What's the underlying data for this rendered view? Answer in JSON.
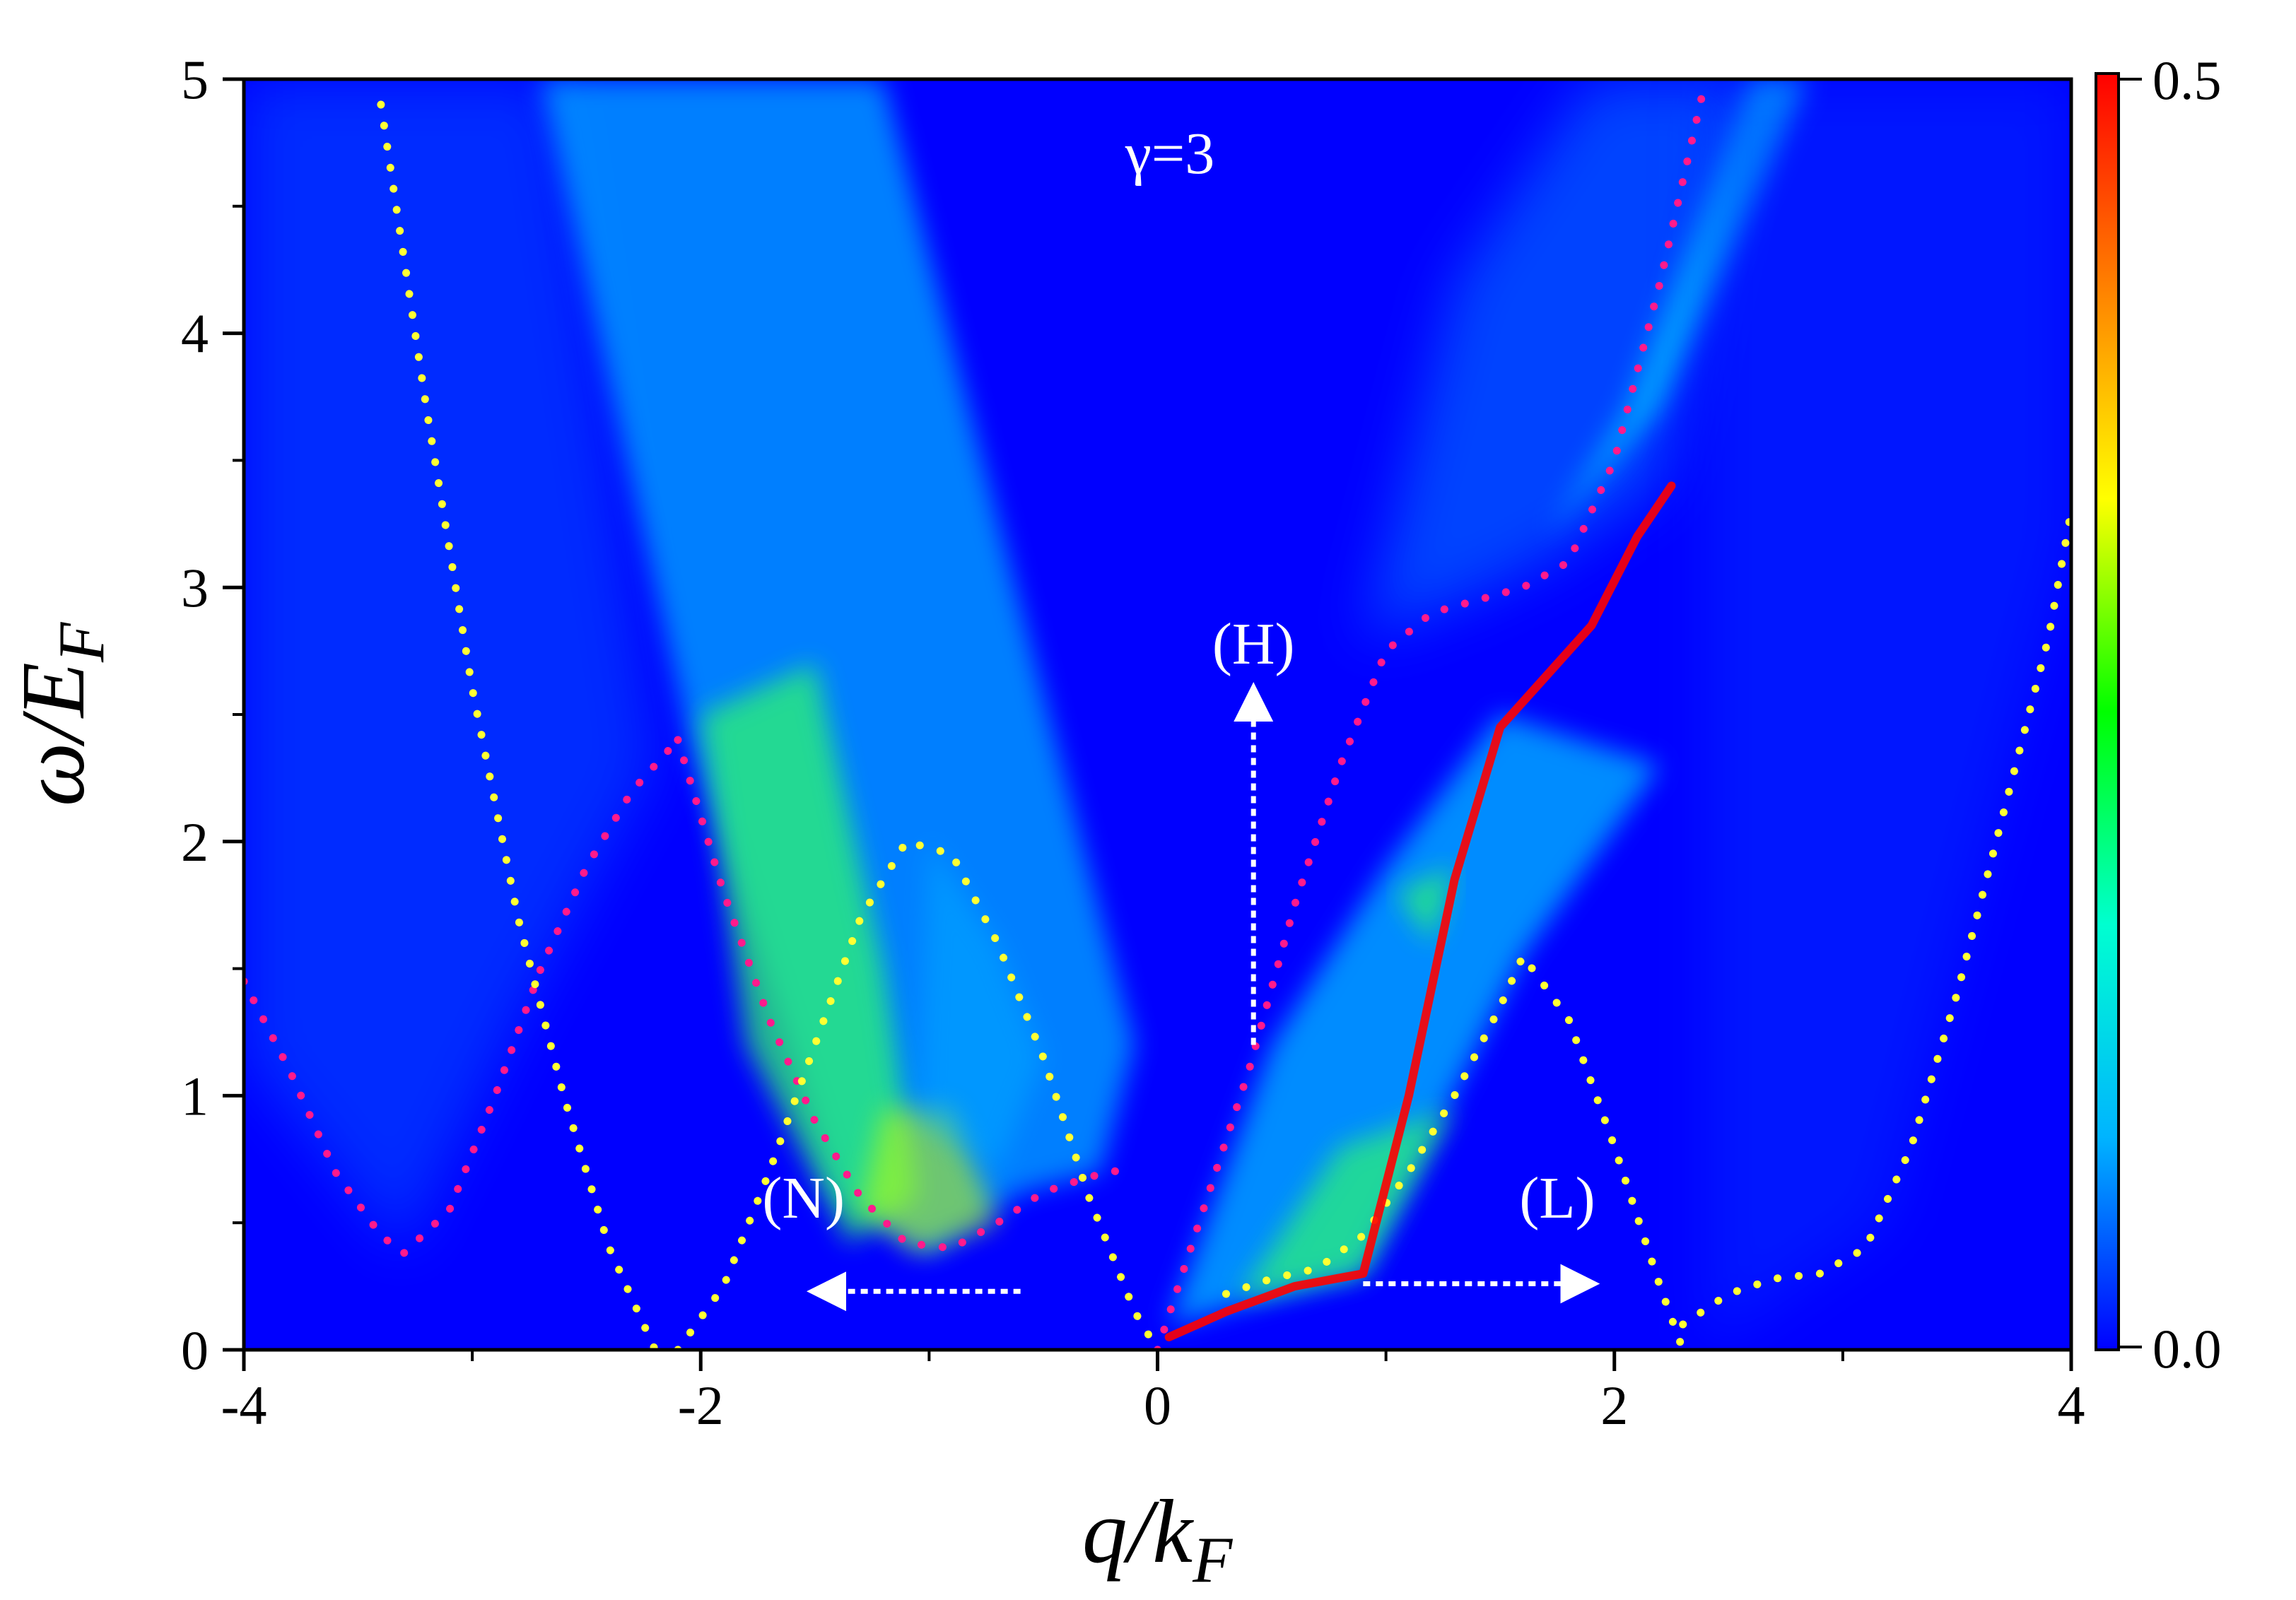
{
  "chart_data": {
    "type": "heatmap",
    "title": "",
    "xlabel": {
      "main": "q/k",
      "sub": "F"
    },
    "ylabel": {
      "main": "ω/E",
      "sub": "F"
    },
    "xlim": [
      -4,
      4
    ],
    "ylim": [
      0,
      5
    ],
    "x_ticks": [
      -4,
      -2,
      0,
      2,
      4
    ],
    "x_tick_labels": [
      "-4",
      "-2",
      "0",
      "2",
      "4"
    ],
    "y_ticks": [
      0,
      1,
      2,
      3,
      4,
      5
    ],
    "y_tick_labels": [
      "0",
      "1",
      "2",
      "3",
      "4",
      "5"
    ],
    "colorbar": {
      "range": [
        0.0,
        0.5
      ],
      "tick_labels": [
        "0.0",
        "0.5"
      ],
      "colormap": [
        "#0000ff",
        "#00b4ff",
        "#00ffd0",
        "#00ff00",
        "#ffff00",
        "#ff8000",
        "#ff0000"
      ]
    },
    "parameter_label": "γ=3",
    "annotations": [
      {
        "text": "(H)",
        "x": 0.42,
        "y": 2.7,
        "arrow": "up"
      },
      {
        "text": "(N)",
        "x": -1.55,
        "y": 0.52,
        "arrow": "left"
      },
      {
        "text": "(L)",
        "x": 1.75,
        "y": 0.52,
        "arrow": "right"
      }
    ],
    "curves": [
      {
        "style": "dotted-magenta",
        "color": "#ff1a8c",
        "x": [
          0,
          0.2,
          0.4,
          0.6,
          0.8,
          1.0,
          1.2,
          1.4,
          1.6,
          1.8,
          2.0,
          2.2,
          2.4
        ],
        "y": [
          0,
          0.55,
          1.1,
          1.75,
          2.3,
          2.75,
          2.9,
          2.95,
          3.0,
          3.1,
          3.5,
          4.2,
          5.0
        ]
      },
      {
        "style": "dotted-magenta",
        "color": "#ff1a8c",
        "x": [
          -4.0,
          -3.8,
          -3.6,
          -3.4,
          -3.3,
          -3.1,
          -2.9,
          -2.7,
          -2.5,
          -2.3,
          -2.1
        ],
        "y": [
          1.45,
          1.1,
          0.7,
          0.45,
          0.38,
          0.55,
          1.0,
          1.5,
          1.9,
          2.2,
          2.4
        ]
      },
      {
        "style": "dotted-magenta",
        "color": "#ff1a8c",
        "x": [
          -2.1,
          -1.9,
          -1.7,
          -1.5,
          -1.3,
          -1.1,
          -0.9,
          -0.7,
          -0.5,
          -0.3,
          -0.1
        ],
        "y": [
          2.4,
          1.8,
          1.3,
          0.9,
          0.6,
          0.42,
          0.4,
          0.5,
          0.62,
          0.68,
          0.72
        ]
      },
      {
        "style": "dotted-yellow",
        "color": "#ffff33",
        "x": [
          -3.4,
          -3.2,
          -3.0,
          -2.8,
          -2.6,
          -2.4,
          -2.2
        ],
        "y": [
          4.9,
          3.7,
          2.6,
          1.7,
          1.0,
          0.4,
          0.0
        ]
      },
      {
        "style": "dotted-yellow",
        "color": "#ffff33",
        "x": [
          -2.1,
          -1.9,
          -1.7,
          -1.5,
          -1.3,
          -1.1,
          -0.9,
          -0.7,
          -0.5,
          -0.3,
          -0.1,
          0
        ],
        "y": [
          0.0,
          0.25,
          0.7,
          1.2,
          1.7,
          2.0,
          1.95,
          1.6,
          1.15,
          0.6,
          0.15,
          0.0
        ]
      },
      {
        "style": "dotted-yellow",
        "color": "#ffff33",
        "x": [
          0.3,
          0.5,
          0.7,
          0.9,
          1.1,
          1.3,
          1.5,
          1.6,
          1.8,
          2.0,
          2.2,
          2.3
        ],
        "y": [
          0.22,
          0.28,
          0.32,
          0.45,
          0.7,
          1.0,
          1.35,
          1.55,
          1.3,
          0.8,
          0.25,
          0.0
        ]
      },
      {
        "style": "dotted-yellow",
        "color": "#ffff33",
        "x": [
          2.3,
          2.5,
          2.7,
          2.9,
          3.1,
          3.3,
          3.5,
          3.7,
          3.9,
          4.0
        ],
        "y": [
          0.1,
          0.22,
          0.28,
          0.3,
          0.4,
          0.8,
          1.4,
          2.1,
          2.8,
          3.3
        ]
      },
      {
        "style": "ridge-red",
        "color": "#ff0000",
        "x": [
          0.05,
          0.3,
          0.6,
          0.9,
          1.1,
          1.3,
          1.5,
          1.7,
          1.9,
          2.1,
          2.25
        ],
        "y": [
          0.05,
          0.15,
          0.25,
          0.3,
          1.0,
          1.85,
          2.45,
          2.65,
          2.85,
          3.2,
          3.4
        ]
      }
    ]
  }
}
